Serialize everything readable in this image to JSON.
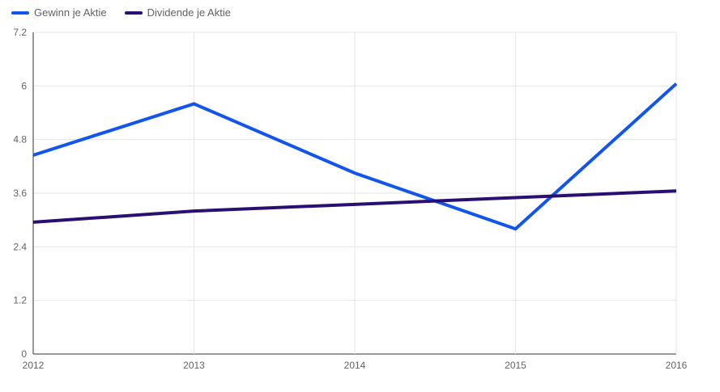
{
  "chart_data": {
    "type": "line",
    "categories": [
      "2012",
      "2013",
      "2014",
      "2015",
      "2016"
    ],
    "series": [
      {
        "name": "Gewinn je Aktie",
        "color": "#1155ee",
        "values": [
          4.45,
          5.6,
          4.05,
          2.8,
          6.05
        ]
      },
      {
        "name": "Dividende je Aktie",
        "color": "#2a0f73",
        "values": [
          2.95,
          3.2,
          3.35,
          3.5,
          3.65
        ]
      }
    ],
    "yticks": [
      "0",
      "1.2",
      "2.4",
      "3.6",
      "4.8",
      "6",
      "7.2"
    ],
    "ylim": [
      0,
      7.2
    ],
    "grid": true,
    "legend_position": "top-left"
  }
}
